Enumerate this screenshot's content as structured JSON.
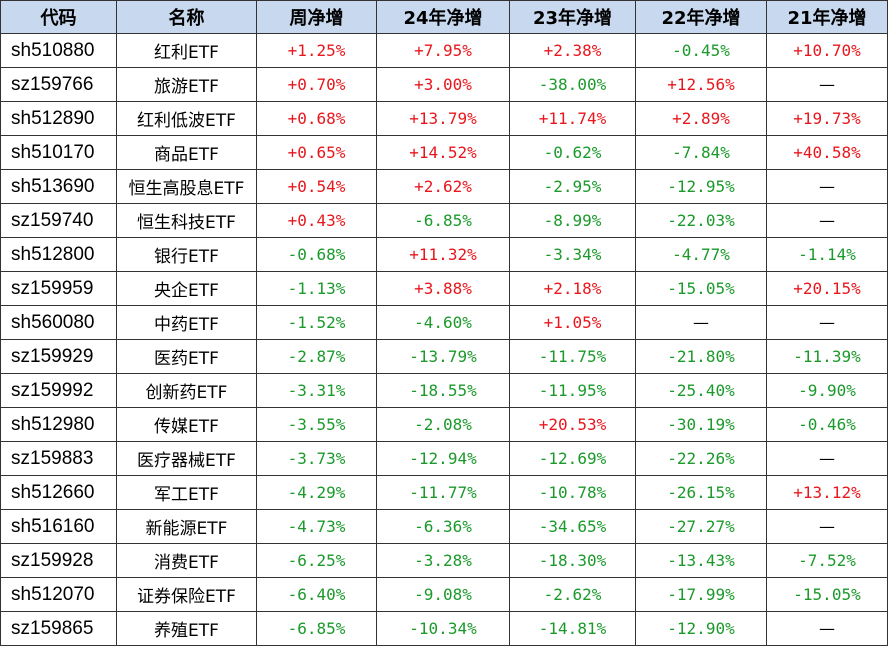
{
  "colors": {
    "positive": "#e8171d",
    "negative": "#1b9a2b",
    "header_bg": "#c7d8ef"
  },
  "headers": [
    "代码",
    "名称",
    "周净增",
    "24年净增",
    "23年净增",
    "22年净增",
    "21年净增"
  ],
  "rows": [
    [
      "sh510880",
      "红利ETF",
      "+1.25%",
      "+7.95%",
      "+2.38%",
      "-0.45%",
      "+10.70%"
    ],
    [
      "sz159766",
      "旅游ETF",
      "+0.70%",
      "+3.00%",
      "-38.00%",
      "+12.56%",
      "—"
    ],
    [
      "sh512890",
      "红利低波ETF",
      "+0.68%",
      "+13.79%",
      "+11.74%",
      "+2.89%",
      "+19.73%"
    ],
    [
      "sh510170",
      "商品ETF",
      "+0.65%",
      "+14.52%",
      "-0.62%",
      "-7.84%",
      "+40.58%"
    ],
    [
      "sh513690",
      "恒生高股息ETF",
      "+0.54%",
      "+2.62%",
      "-2.95%",
      "-12.95%",
      "—"
    ],
    [
      "sz159740",
      "恒生科技ETF",
      "+0.43%",
      "-6.85%",
      "-8.99%",
      "-22.03%",
      "—"
    ],
    [
      "sh512800",
      "银行ETF",
      "-0.68%",
      "+11.32%",
      "-3.34%",
      "-4.77%",
      "-1.14%"
    ],
    [
      "sz159959",
      "央企ETF",
      "-1.13%",
      "+3.88%",
      "+2.18%",
      "-15.05%",
      "+20.15%"
    ],
    [
      "sh560080",
      "中药ETF",
      "-1.52%",
      "-4.60%",
      "+1.05%",
      "—",
      "—"
    ],
    [
      "sz159929",
      "医药ETF",
      "-2.87%",
      "-13.79%",
      "-11.75%",
      "-21.80%",
      "-11.39%"
    ],
    [
      "sz159992",
      "创新药ETF",
      "-3.31%",
      "-18.55%",
      "-11.95%",
      "-25.40%",
      "-9.90%"
    ],
    [
      "sh512980",
      "传媒ETF",
      "-3.55%",
      "-2.08%",
      "+20.53%",
      "-30.19%",
      "-0.46%"
    ],
    [
      "sz159883",
      "医疗器械ETF",
      "-3.73%",
      "-12.94%",
      "-12.69%",
      "-22.26%",
      "—"
    ],
    [
      "sh512660",
      "军工ETF",
      "-4.29%",
      "-11.77%",
      "-10.78%",
      "-26.15%",
      "+13.12%"
    ],
    [
      "sh516160",
      "新能源ETF",
      "-4.73%",
      "-6.36%",
      "-34.65%",
      "-27.27%",
      "—"
    ],
    [
      "sz159928",
      "消费ETF",
      "-6.25%",
      "-3.28%",
      "-18.30%",
      "-13.43%",
      "-7.52%"
    ],
    [
      "sh512070",
      "证券保险ETF",
      "-6.40%",
      "-9.08%",
      "-2.62%",
      "-17.99%",
      "-15.05%"
    ],
    [
      "sz159865",
      "养殖ETF",
      "-6.85%",
      "-10.34%",
      "-14.81%",
      "-12.90%",
      "—"
    ]
  ]
}
